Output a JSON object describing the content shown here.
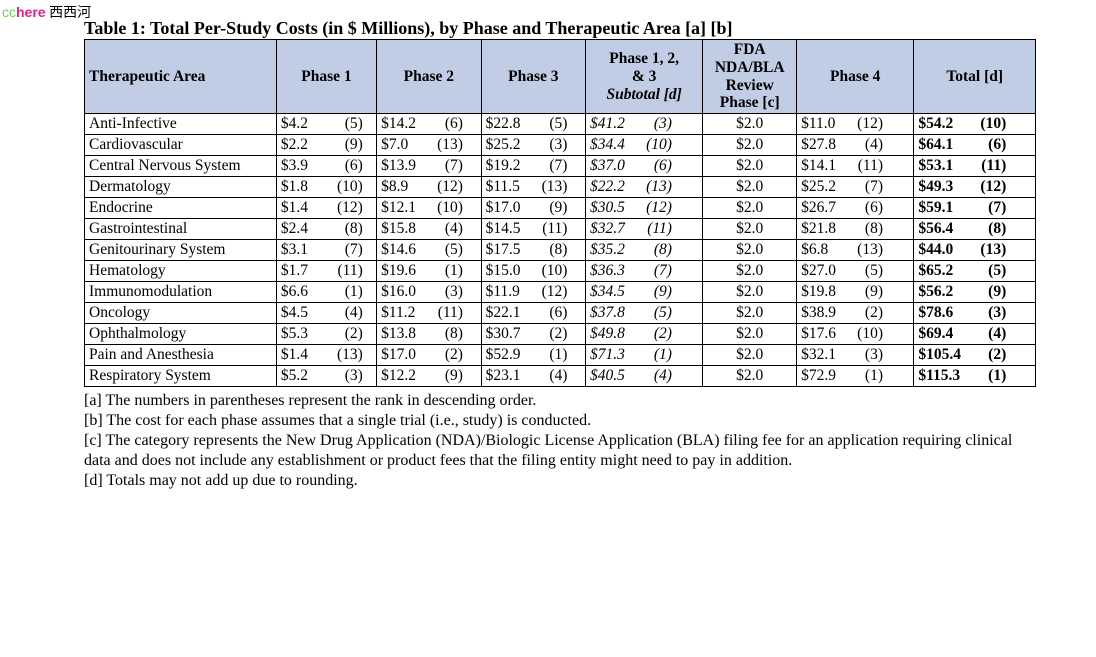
{
  "watermark": {
    "cc": "cc",
    "here": "here",
    "cn": " 西西河"
  },
  "title": "Table 1:  Total Per-Study Costs (in $ Millions), by Phase and Therapeutic Area [a] [b]",
  "headers": {
    "therapeutic_area": "Therapeutic Area",
    "phase1": "Phase 1",
    "phase2": "Phase 2",
    "phase3": "Phase 3",
    "subtotal_line1": "Phase 1, 2,",
    "subtotal_line2": "& 3",
    "subtotal_line3": "Subtotal [d]",
    "fda_line1": "FDA",
    "fda_line2": "NDA/BLA",
    "fda_line3": "Review",
    "fda_line4": "Phase [c]",
    "phase4": "Phase 4",
    "total": "Total [d]"
  },
  "col_widths": {
    "area": 180,
    "phase1": 94,
    "phase2": 98,
    "phase3": 98,
    "subtotal": 110,
    "fda": 88,
    "phase4": 110,
    "total": 114
  },
  "colors": {
    "header_bg": "#c1cde4",
    "border": "#000000",
    "text": "#000000"
  },
  "font": {
    "family": "Times New Roman",
    "title_size_pt": 13,
    "body_size_pt": 12
  },
  "rows": [
    {
      "area": "Anti-Infective",
      "p1": {
        "amt": "$4.2",
        "rank": 5
      },
      "p2": {
        "amt": "$14.2",
        "rank": 6
      },
      "p3": {
        "amt": "$22.8",
        "rank": 5
      },
      "sub": {
        "amt": "$41.2",
        "rank": 3
      },
      "fda": "$2.0",
      "p4": {
        "amt": "$11.0",
        "rank": 12
      },
      "tot": {
        "amt": "$54.2",
        "rank": 10
      }
    },
    {
      "area": "Cardiovascular",
      "p1": {
        "amt": "$2.2",
        "rank": 9
      },
      "p2": {
        "amt": "$7.0",
        "rank": 13
      },
      "p3": {
        "amt": "$25.2",
        "rank": 3
      },
      "sub": {
        "amt": "$34.4",
        "rank": 10
      },
      "fda": "$2.0",
      "p4": {
        "amt": "$27.8",
        "rank": 4
      },
      "tot": {
        "amt": "$64.1",
        "rank": 6
      }
    },
    {
      "area": "Central Nervous System",
      "p1": {
        "amt": "$3.9",
        "rank": 6
      },
      "p2": {
        "amt": "$13.9",
        "rank": 7
      },
      "p3": {
        "amt": "$19.2",
        "rank": 7
      },
      "sub": {
        "amt": "$37.0",
        "rank": 6
      },
      "fda": "$2.0",
      "p4": {
        "amt": "$14.1",
        "rank": 11
      },
      "tot": {
        "amt": "$53.1",
        "rank": 11
      }
    },
    {
      "area": "Dermatology",
      "p1": {
        "amt": "$1.8",
        "rank": 10
      },
      "p2": {
        "amt": "$8.9",
        "rank": 12
      },
      "p3": {
        "amt": "$11.5",
        "rank": 13
      },
      "sub": {
        "amt": "$22.2",
        "rank": 13
      },
      "fda": "$2.0",
      "p4": {
        "amt": "$25.2",
        "rank": 7
      },
      "tot": {
        "amt": "$49.3",
        "rank": 12
      }
    },
    {
      "area": "Endocrine",
      "p1": {
        "amt": "$1.4",
        "rank": 12
      },
      "p2": {
        "amt": "$12.1",
        "rank": 10
      },
      "p3": {
        "amt": "$17.0",
        "rank": 9
      },
      "sub": {
        "amt": "$30.5",
        "rank": 12
      },
      "fda": "$2.0",
      "p4": {
        "amt": "$26.7",
        "rank": 6
      },
      "tot": {
        "amt": "$59.1",
        "rank": 7
      }
    },
    {
      "area": "Gastrointestinal",
      "p1": {
        "amt": "$2.4",
        "rank": 8
      },
      "p2": {
        "amt": "$15.8",
        "rank": 4
      },
      "p3": {
        "amt": "$14.5",
        "rank": 11
      },
      "sub": {
        "amt": "$32.7",
        "rank": 11
      },
      "fda": "$2.0",
      "p4": {
        "amt": "$21.8",
        "rank": 8
      },
      "tot": {
        "amt": "$56.4",
        "rank": 8
      }
    },
    {
      "area": "Genitourinary System",
      "p1": {
        "amt": "$3.1",
        "rank": 7
      },
      "p2": {
        "amt": "$14.6",
        "rank": 5
      },
      "p3": {
        "amt": "$17.5",
        "rank": 8
      },
      "sub": {
        "amt": "$35.2",
        "rank": 8
      },
      "fda": "$2.0",
      "p4": {
        "amt": "$6.8",
        "rank": 13
      },
      "tot": {
        "amt": "$44.0",
        "rank": 13
      }
    },
    {
      "area": "Hematology",
      "p1": {
        "amt": "$1.7",
        "rank": 11
      },
      "p2": {
        "amt": "$19.6",
        "rank": 1
      },
      "p3": {
        "amt": "$15.0",
        "rank": 10
      },
      "sub": {
        "amt": "$36.3",
        "rank": 7
      },
      "fda": "$2.0",
      "p4": {
        "amt": "$27.0",
        "rank": 5
      },
      "tot": {
        "amt": "$65.2",
        "rank": 5
      }
    },
    {
      "area": "Immunomodulation",
      "p1": {
        "amt": "$6.6",
        "rank": 1
      },
      "p2": {
        "amt": "$16.0",
        "rank": 3
      },
      "p3": {
        "amt": "$11.9",
        "rank": 12
      },
      "sub": {
        "amt": "$34.5",
        "rank": 9
      },
      "fda": "$2.0",
      "p4": {
        "amt": "$19.8",
        "rank": 9
      },
      "tot": {
        "amt": "$56.2",
        "rank": 9
      }
    },
    {
      "area": "Oncology",
      "p1": {
        "amt": "$4.5",
        "rank": 4
      },
      "p2": {
        "amt": "$11.2",
        "rank": 11
      },
      "p3": {
        "amt": "$22.1",
        "rank": 6
      },
      "sub": {
        "amt": "$37.8",
        "rank": 5
      },
      "fda": "$2.0",
      "p4": {
        "amt": "$38.9",
        "rank": 2
      },
      "tot": {
        "amt": "$78.6",
        "rank": 3
      }
    },
    {
      "area": "Ophthalmology",
      "p1": {
        "amt": "$5.3",
        "rank": 2
      },
      "p2": {
        "amt": "$13.8",
        "rank": 8
      },
      "p3": {
        "amt": "$30.7",
        "rank": 2
      },
      "sub": {
        "amt": "$49.8",
        "rank": 2
      },
      "fda": "$2.0",
      "p4": {
        "amt": "$17.6",
        "rank": 10
      },
      "tot": {
        "amt": "$69.4",
        "rank": 4
      }
    },
    {
      "area": "Pain and Anesthesia",
      "p1": {
        "amt": "$1.4",
        "rank": 13
      },
      "p2": {
        "amt": "$17.0",
        "rank": 2
      },
      "p3": {
        "amt": "$52.9",
        "rank": 1
      },
      "sub": {
        "amt": "$71.3",
        "rank": 1
      },
      "fda": "$2.0",
      "p4": {
        "amt": "$32.1",
        "rank": 3
      },
      "tot": {
        "amt": "$105.4",
        "rank": 2
      }
    },
    {
      "area": "Respiratory System",
      "p1": {
        "amt": "$5.2",
        "rank": 3
      },
      "p2": {
        "amt": "$12.2",
        "rank": 9
      },
      "p3": {
        "amt": "$23.1",
        "rank": 4
      },
      "sub": {
        "amt": "$40.5",
        "rank": 4
      },
      "fda": "$2.0",
      "p4": {
        "amt": "$72.9",
        "rank": 1
      },
      "tot": {
        "amt": "$115.3",
        "rank": 1
      }
    }
  ],
  "notes": [
    "[a] The numbers in parentheses represent the rank in descending order.",
    "[b] The cost for each phase assumes that a single trial (i.e., study) is conducted.",
    "[c] The category represents the New Drug Application (NDA)/Biologic License Application (BLA) filing fee for an application requiring clinical data and does not include any establishment or product fees that the filing entity might need to pay in addition.",
    "[d] Totals may not add up due to rounding."
  ]
}
